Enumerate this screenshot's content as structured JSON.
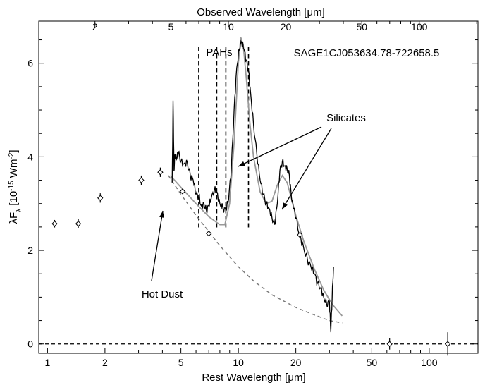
{
  "chart_data": {
    "type": "line",
    "object_name": "SAGE1CJ053634.78-722658.5",
    "xlabel": "Rest Wavelength [μm]",
    "xlabel_top": "Observed Wavelength [μm]",
    "ylabel_main": "λF",
    "ylabel_sub": "λ",
    "ylabel_units": " [10",
    "ylabel_exp": "-15",
    "ylabel_units2": " Wm",
    "ylabel_exp2": "-2",
    "ylabel_close": "]",
    "x_scale": "log",
    "xlim": [
      0.9,
      180
    ],
    "ylim": [
      -0.2,
      6.9
    ],
    "observed_over_rest": 1.128,
    "x_ticks_bottom": [
      1,
      2,
      5,
      10,
      20,
      50,
      100
    ],
    "x_ticks_top": [
      2,
      5,
      10,
      20,
      50,
      100
    ],
    "y_ticks": [
      0,
      2,
      4,
      6
    ],
    "annotations": {
      "pahs": "PAHs",
      "silicates": "Silicates",
      "hot_dust": "Hot Dust"
    },
    "pah_lines_x": [
      6.2,
      7.7,
      8.6,
      11.3
    ],
    "pah_lines_top_y": 6.35,
    "photometry": [
      {
        "x": 1.09,
        "y": 2.57,
        "err": 0.08
      },
      {
        "x": 1.45,
        "y": 2.57,
        "err": 0.1
      },
      {
        "x": 1.89,
        "y": 3.12,
        "err": 0.1
      },
      {
        "x": 3.1,
        "y": 3.5,
        "err": 0.1
      },
      {
        "x": 3.9,
        "y": 3.67,
        "err": 0.1
      },
      {
        "x": 5.1,
        "y": 3.26,
        "err": 0.05
      },
      {
        "x": 7.0,
        "y": 2.36,
        "err": 0.05
      },
      {
        "x": 21.0,
        "y": 2.33,
        "err": 0.05
      },
      {
        "x": 62.0,
        "y": 0.0,
        "err": 0.12
      },
      {
        "x": 125.0,
        "y": 0.0,
        "err": 0.25
      }
    ],
    "spectrum": [
      [
        4.5,
        3.45
      ],
      [
        4.55,
        5.2
      ],
      [
        4.6,
        3.7
      ],
      [
        4.65,
        4.05
      ],
      [
        4.75,
        3.95
      ],
      [
        4.85,
        4.1
      ],
      [
        5.0,
        3.9
      ],
      [
        5.2,
        3.85
      ],
      [
        5.4,
        3.88
      ],
      [
        5.6,
        3.6
      ],
      [
        5.8,
        3.5
      ],
      [
        6.0,
        3.2
      ],
      [
        6.2,
        3.15
      ],
      [
        6.4,
        2.95
      ],
      [
        6.6,
        3.0
      ],
      [
        6.8,
        2.85
      ],
      [
        7.0,
        2.95
      ],
      [
        7.2,
        3.1
      ],
      [
        7.5,
        3.3
      ],
      [
        7.7,
        3.25
      ],
      [
        8.0,
        3.0
      ],
      [
        8.3,
        2.9
      ],
      [
        8.6,
        2.85
      ],
      [
        8.9,
        3.1
      ],
      [
        9.2,
        3.8
      ],
      [
        9.5,
        5.0
      ],
      [
        9.8,
        5.9
      ],
      [
        10.1,
        6.3
      ],
      [
        10.4,
        6.45
      ],
      [
        10.7,
        6.3
      ],
      [
        11.0,
        6.05
      ],
      [
        11.3,
        5.85
      ],
      [
        11.6,
        5.35
      ],
      [
        12.0,
        4.7
      ],
      [
        12.5,
        4.05
      ],
      [
        13.0,
        3.5
      ],
      [
        13.5,
        3.2
      ],
      [
        14.0,
        3.0
      ],
      [
        14.5,
        2.9
      ],
      [
        15.0,
        2.7
      ],
      [
        15.5,
        2.55
      ],
      [
        16.0,
        3.0
      ],
      [
        16.5,
        3.7
      ],
      [
        17.0,
        3.9
      ],
      [
        17.5,
        3.8
      ],
      [
        18.0,
        3.75
      ],
      [
        18.5,
        3.6
      ],
      [
        19.0,
        3.1
      ],
      [
        19.5,
        2.9
      ],
      [
        20.0,
        2.7
      ],
      [
        21.0,
        2.3
      ],
      [
        22.0,
        2.05
      ],
      [
        23.0,
        1.8
      ],
      [
        24.0,
        1.65
      ],
      [
        25.0,
        1.5
      ],
      [
        26.0,
        1.3
      ],
      [
        27.0,
        1.2
      ],
      [
        28.0,
        1.0
      ],
      [
        29.0,
        0.85
      ],
      [
        30.0,
        0.9
      ],
      [
        30.5,
        0.25
      ],
      [
        31.0,
        1.0
      ],
      [
        31.5,
        1.65
      ]
    ],
    "model_total": [
      [
        4.4,
        3.6
      ],
      [
        5.0,
        3.35
      ],
      [
        6.0,
        3.0
      ],
      [
        7.0,
        2.72
      ],
      [
        8.0,
        2.55
      ],
      [
        8.5,
        2.55
      ],
      [
        9.0,
        3.0
      ],
      [
        9.5,
        4.3
      ],
      [
        10.0,
        6.0
      ],
      [
        10.3,
        6.55
      ],
      [
        10.6,
        6.4
      ],
      [
        11.0,
        5.7
      ],
      [
        11.5,
        4.7
      ],
      [
        12.0,
        4.0
      ],
      [
        13.0,
        3.25
      ],
      [
        14.0,
        3.0
      ],
      [
        15.0,
        3.05
      ],
      [
        16.0,
        3.4
      ],
      [
        17.0,
        3.6
      ],
      [
        18.0,
        3.45
      ],
      [
        19.0,
        3.1
      ],
      [
        20.0,
        2.75
      ],
      [
        22.0,
        2.2
      ],
      [
        25.0,
        1.6
      ],
      [
        28.0,
        1.15
      ],
      [
        31.0,
        0.85
      ],
      [
        35.0,
        0.6
      ]
    ],
    "model_hot_dust": [
      [
        4.3,
        3.6
      ],
      [
        5.0,
        3.2
      ],
      [
        6.0,
        2.75
      ],
      [
        7.0,
        2.4
      ],
      [
        8.0,
        2.1
      ],
      [
        10.0,
        1.65
      ],
      [
        12.0,
        1.35
      ],
      [
        15.0,
        1.05
      ],
      [
        20.0,
        0.78
      ],
      [
        25.0,
        0.62
      ],
      [
        30.0,
        0.5
      ],
      [
        35.0,
        0.45
      ]
    ]
  }
}
